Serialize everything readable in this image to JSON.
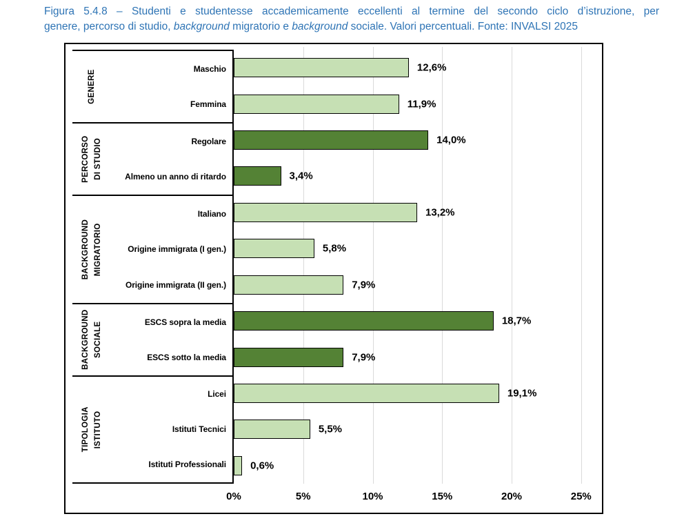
{
  "caption": {
    "line1": "Figura 5.4.8 – Studenti e studentesse accademicamente eccellenti al termine del secondo ciclo d’istruzione, per",
    "line2_parts": [
      "genere, percorso di studio, ",
      "background",
      " migratorio e ",
      "background",
      " sociale. Valori percentuali. Fonte: INVALSI 2025"
    ]
  },
  "chart_data": {
    "type": "bar",
    "orientation": "horizontal",
    "title": "Studenti e studentesse accademicamente eccellenti al termine del secondo ciclo d’istruzione, per genere, percorso di studio, background migratorio e background sociale. Valori percentuali.",
    "source": "INVALSI 2025",
    "unit": "%",
    "xlabel": "",
    "ylabel": "",
    "grid": true,
    "axis": {
      "min": 0,
      "max": 25,
      "tick_step": 5,
      "ticks": [
        0,
        5,
        10,
        15,
        20,
        25
      ],
      "tick_labels": [
        "0%",
        "5%",
        "10%",
        "15%",
        "20%",
        "25%"
      ]
    },
    "colors": {
      "light": "#C6E0B4",
      "dark": "#548235",
      "bar_border": "#000000",
      "gridline": "#D9D9D9"
    },
    "groups": [
      {
        "label": "GENERE",
        "label_lines": [
          "GENERE"
        ],
        "color": "light",
        "items": [
          {
            "label": "Maschio",
            "value": 12.6,
            "value_label": "12,6%"
          },
          {
            "label": "Femmina",
            "value": 11.9,
            "value_label": "11,9%"
          }
        ]
      },
      {
        "label": "PERCORSO DI STUDIO",
        "label_lines": [
          "PERCORSO",
          "DI STUDIO"
        ],
        "color": "dark",
        "items": [
          {
            "label": "Regolare",
            "value": 14.0,
            "value_label": "14,0%"
          },
          {
            "label": "Almeno un anno di ritardo",
            "value": 3.4,
            "value_label": "3,4%"
          }
        ]
      },
      {
        "label": "BACKGROUND MIGRATORIO",
        "label_lines": [
          "BACKGROUND",
          "MIGRATORIO"
        ],
        "color": "light",
        "items": [
          {
            "label": "Italiano",
            "value": 13.2,
            "value_label": "13,2%"
          },
          {
            "label": "Origine immigrata (I gen.)",
            "value": 5.8,
            "value_label": "5,8%"
          },
          {
            "label": "Origine immigrata (II gen.)",
            "value": 7.9,
            "value_label": "7,9%"
          }
        ]
      },
      {
        "label": "BACKGROUND SOCIALE",
        "label_lines": [
          "BACKGROUND",
          "SOCIALE"
        ],
        "color": "dark",
        "items": [
          {
            "label": "ESCS sopra la media",
            "value": 18.7,
            "value_label": "18,7%"
          },
          {
            "label": "ESCS sotto la media",
            "value": 7.9,
            "value_label": "7,9%"
          }
        ]
      },
      {
        "label": "TIPOLOGIA ISTITUTO",
        "label_lines": [
          "TIPOLOGIA",
          "ISTITUTO"
        ],
        "color": "light",
        "items": [
          {
            "label": "Licei",
            "value": 19.1,
            "value_label": "19,1%"
          },
          {
            "label": "Istituti Tecnici",
            "value": 5.5,
            "value_label": "5,5%"
          },
          {
            "label": "Istituti Professionali",
            "value": 0.6,
            "value_label": "0,6%"
          }
        ]
      }
    ]
  }
}
